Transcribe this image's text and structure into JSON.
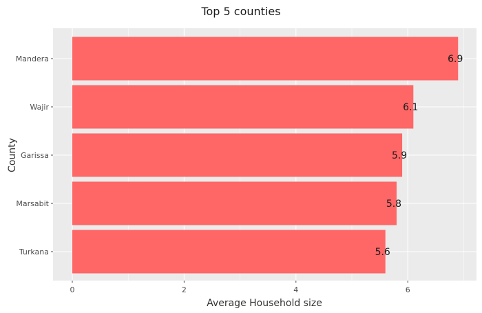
{
  "chart_data": {
    "type": "bar",
    "orientation": "horizontal",
    "title": "Top 5 counties",
    "xlabel": "Average Household size",
    "ylabel": "County",
    "categories": [
      "Mandera",
      "Wajir",
      "Garissa",
      "Marsabit",
      "Turkana"
    ],
    "values": [
      6.9,
      6.1,
      5.9,
      5.8,
      5.6
    ],
    "value_labels": [
      "6.9",
      "6.1",
      "5.9",
      "5.8",
      "5.6"
    ],
    "xlim": [
      0,
      7.2
    ],
    "xticks": [
      0,
      2,
      4,
      6
    ],
    "grid": true,
    "colors": {
      "bar": "#ff6666",
      "panel": "#ebebeb",
      "grid": "#ffffff",
      "text": "#333333",
      "tick_text": "#4d4d4d"
    }
  }
}
